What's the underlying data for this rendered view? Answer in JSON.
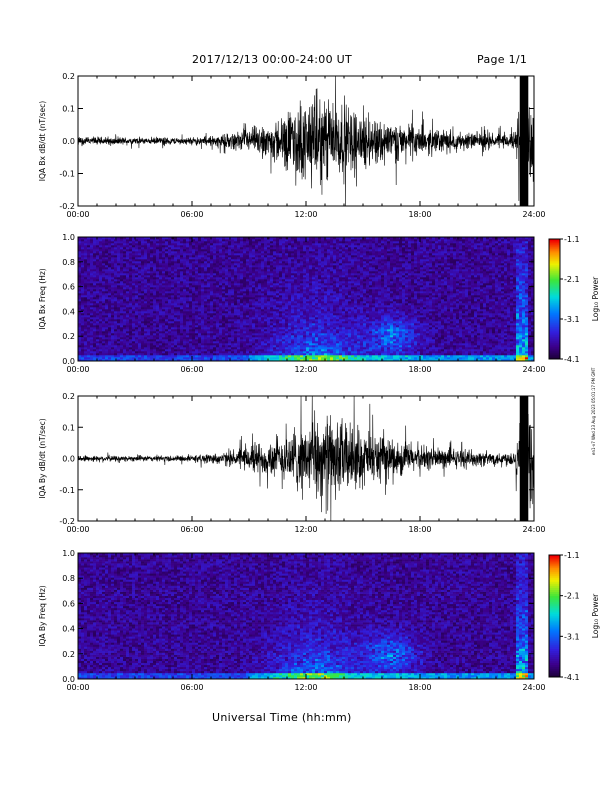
{
  "header": {
    "title": "2017/12/13  00:00-24:00 UT",
    "page": "Page 1/1"
  },
  "footer": {
    "xlabel": "Universal Time (hh:mm)"
  },
  "stamp": "en1-v7 Wed 23 Aug 2023 05:01:17 PM GMT",
  "chart_data": [
    {
      "type": "line",
      "ylabel": "IQA Bx dB/dt (nT/sec)",
      "xlim": [
        0,
        24
      ],
      "ylim": [
        -0.2,
        0.2
      ],
      "xticks": [
        "00:00",
        "06:00",
        "12:00",
        "18:00",
        "24:00"
      ],
      "yticks": [
        "-0.2",
        "-0.1",
        "0.0",
        "0.1",
        "0.2"
      ],
      "series": [
        {
          "amplitude_envelope": {
            "x": [
              0,
              3,
              6,
              8,
              9,
              10,
              11,
              12,
              13,
              14,
              15,
              16,
              17,
              18,
              19,
              20,
              21,
              22,
              23,
              23.3,
              23.6,
              24
            ],
            "amp": [
              0.02,
              0.015,
              0.015,
              0.03,
              0.05,
              0.07,
              0.12,
              0.18,
              0.2,
              0.16,
              0.12,
              0.1,
              0.08,
              0.06,
              0.05,
              0.04,
              0.035,
              0.03,
              0.035,
              0.2,
              0.2,
              0.2
            ]
          }
        }
      ]
    },
    {
      "type": "heatmap",
      "ylabel": "IQA Bx Freq (Hz)",
      "colorbar_label": "Log₁₀ Power",
      "colorbar_ticks": [
        "-1.1",
        "-2.1",
        "-3.1",
        "-4.1"
      ],
      "clim": [
        -4.1,
        -1.1
      ],
      "xlim": [
        0,
        24
      ],
      "ylim": [
        0.0,
        1.0
      ],
      "xticks": [
        "00:00",
        "06:00",
        "12:00",
        "18:00",
        "24:00"
      ],
      "yticks": [
        "0.0",
        "0.2",
        "0.4",
        "0.6",
        "0.8",
        "1.0"
      ]
    },
    {
      "type": "line",
      "ylabel": "IQA By dB/dt (nT/sec)",
      "xlim": [
        0,
        24
      ],
      "ylim": [
        -0.2,
        0.2
      ],
      "xticks": [
        "00:00",
        "06:00",
        "12:00",
        "18:00",
        "24:00"
      ],
      "yticks": [
        "-0.2",
        "-0.1",
        "0.0",
        "0.1",
        "0.2"
      ],
      "series": [
        {
          "amplitude_envelope": {
            "x": [
              0,
              3,
              6,
              8,
              9,
              10,
              11,
              12,
              13,
              14,
              15,
              16,
              17,
              18,
              19,
              20,
              21,
              22,
              23,
              23.3,
              23.6,
              24
            ],
            "amp": [
              0.015,
              0.012,
              0.015,
              0.03,
              0.06,
              0.08,
              0.12,
              0.16,
              0.2,
              0.16,
              0.12,
              0.1,
              0.08,
              0.06,
              0.05,
              0.04,
              0.035,
              0.03,
              0.035,
              0.2,
              0.2,
              0.2
            ]
          }
        }
      ]
    },
    {
      "type": "heatmap",
      "ylabel": "IQA By Freq (Hz)",
      "colorbar_label": "Log₁₀ Power",
      "colorbar_ticks": [
        "-1.1",
        "-2.1",
        "-3.1",
        "-4.1"
      ],
      "clim": [
        -4.1,
        -1.1
      ],
      "xlim": [
        0,
        24
      ],
      "ylim": [
        0.0,
        1.0
      ],
      "xticks": [
        "00:00",
        "06:00",
        "12:00",
        "18:00",
        "24:00"
      ],
      "yticks": [
        "0.0",
        "0.2",
        "0.4",
        "0.6",
        "0.8",
        "1.0"
      ]
    }
  ]
}
